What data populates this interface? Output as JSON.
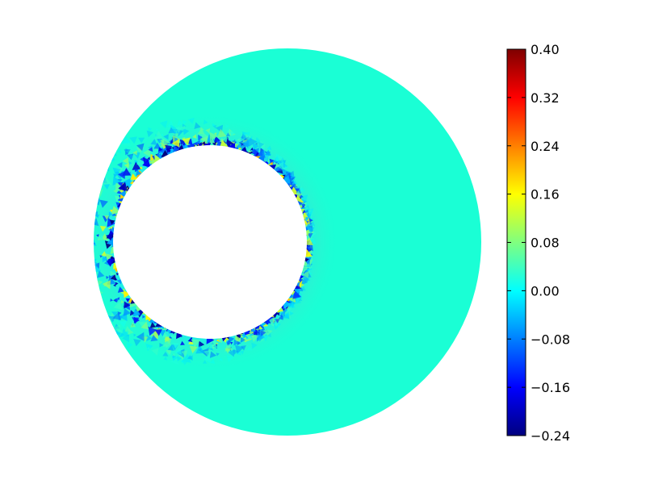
{
  "chart_data": {
    "type": "heatmap",
    "title": "",
    "xlabel": "",
    "ylabel": "",
    "domain_shape": "annulus with off-center circular hole (hole on left side)",
    "colormap": "jet",
    "color_range": [
      -0.24,
      0.4
    ],
    "background_value": 0.0,
    "colorbar": {
      "placement": "right",
      "ticks": [
        0.4,
        0.32,
        0.24,
        0.16,
        0.08,
        0.0,
        -0.08,
        -0.16,
        -0.24
      ],
      "tick_labels": [
        "0.40",
        "0.32",
        "0.24",
        "0.16",
        "0.08",
        "0.00",
        "−0.08",
        "−0.16",
        "−0.24"
      ]
    },
    "grid": false,
    "legend": "none"
  }
}
